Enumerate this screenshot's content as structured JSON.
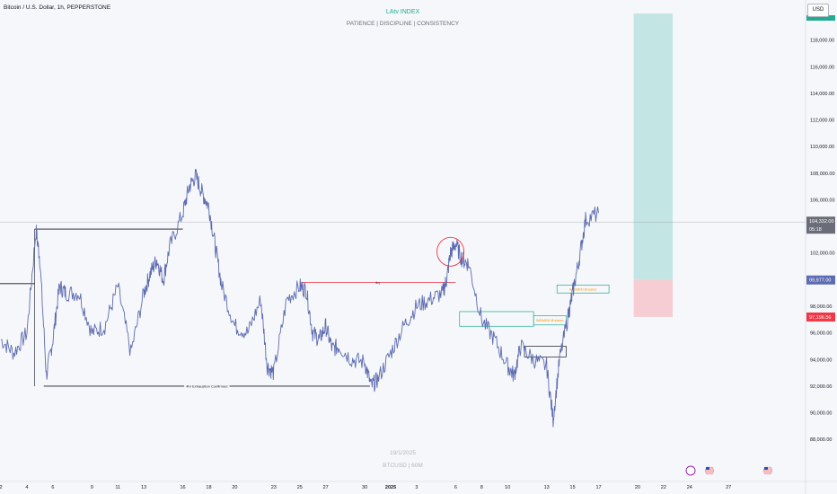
{
  "header": {
    "symbol": "Bitcoin / U.S. Dollar, 1h, PEPPERSTONE",
    "title": "LAtv INDEX",
    "subtitle": "PATIENCE | DISCIPLINE | CONSISTENCY",
    "currency": "USD"
  },
  "watermark": {
    "date": "19/1/2025",
    "symbol": "BTCUSD | 60M"
  },
  "colors": {
    "price": "#5d6bb0",
    "bull": "#22ab94",
    "bear": "#f23645",
    "axis": "#131722"
  },
  "chart_data": {
    "type": "line",
    "title": "",
    "xlabel": "",
    "ylabel": "",
    "ylim": [
      86800,
      120000
    ],
    "y_ticks": [
      "88,000.00",
      "90,000.00",
      "92,000.00",
      "94,000.00",
      "96,000.00",
      "98,000.00",
      "100,000.00",
      "102,000.00",
      "104,000.00",
      "106,000.00",
      "108,000.00",
      "110,000.00",
      "112,000.00",
      "114,000.00",
      "116,000.00",
      "118,000.00"
    ],
    "x_ticks": [
      "2",
      "4",
      "6",
      "9",
      "11",
      "13",
      "16",
      "18",
      "20",
      "23",
      "25",
      "27",
      "30",
      "2025",
      "3",
      "6",
      "8",
      "10",
      "13",
      "15",
      "17",
      "20",
      "22",
      "24",
      "27"
    ],
    "series": [
      {
        "x": [
          2,
          3,
          4,
          4.7,
          5,
          5.5,
          6,
          6.5,
          7,
          8,
          9,
          10,
          11,
          12,
          13,
          13.5,
          14,
          14.5,
          15,
          16,
          16.5,
          17,
          17.5,
          18,
          18.5,
          19,
          20,
          21,
          22,
          22.5,
          23,
          24,
          25,
          25.5,
          26,
          26.5,
          27,
          27.5,
          28,
          29,
          30,
          30.5,
          31,
          32,
          33,
          34,
          35,
          36,
          36.3,
          36.6,
          37,
          37.5,
          38,
          39,
          40,
          41,
          41.5,
          42,
          43,
          44,
          44.5,
          45,
          45.7,
          46,
          46.5,
          47,
          48
        ],
        "y": [
          95500,
          94500,
          96000,
          103700,
          101500,
          92800,
          95500,
          99500,
          99000,
          99000,
          96000,
          96500,
          99500,
          94500,
          99000,
          100500,
          101500,
          100000,
          102500,
          105000,
          107000,
          107800,
          106500,
          105500,
          102500,
          99500,
          96500,
          96000,
          98500,
          93500,
          93000,
          98500,
          99500,
          99200,
          96000,
          95500,
          96500,
          94800,
          95000,
          94000,
          93800,
          92000,
          92500,
          94500,
          96500,
          98000,
          98500,
          99000,
          100000,
          102000,
          102700,
          101500,
          101200,
          97000,
          95500,
          93500,
          92800,
          95000,
          94000,
          93500,
          89500,
          94000,
          97500,
          99000,
          101500,
          104500,
          105000
        ]
      }
    ],
    "current_price": "104,332.00",
    "current_time": "05:18",
    "tags": [
      {
        "label": "99,977.00",
        "price": 99977,
        "color": "#5d6bb0"
      },
      {
        "label": "97,196.56",
        "price": 97196.56,
        "color": "#f23645"
      }
    ],
    "trade": {
      "entry": 99977,
      "stop": 97196.56,
      "target": 120000
    },
    "levels": [
      {
        "price": 103800,
        "x1": 4.6,
        "x2": 16,
        "color": "#131722",
        "label": ""
      },
      {
        "price": 99700,
        "x1": 1.6,
        "x2": 4.6,
        "color": "#131722",
        "label": ""
      },
      {
        "price": 99800,
        "x1": 25,
        "x2": 37,
        "color": "#f23645",
        "label": "liq"
      },
      {
        "price": 92000,
        "x1": 5.3,
        "x2": 30.4,
        "color": "#131722",
        "label": "4hr Exhaustion Confirmed"
      }
    ],
    "zones": [
      {
        "top": 97600,
        "bottom": 96500,
        "x1": 37.3,
        "x2": 43,
        "color": "#22ab94",
        "label": ""
      },
      {
        "top": 97300,
        "bottom": 96600,
        "x1": 43,
        "x2": 45.5,
        "color": "#22ab94",
        "label": "IMBMBN Breaker"
      },
      {
        "top": 99600,
        "bottom": 99000,
        "x1": 44.8,
        "x2": 48.8,
        "color": "#22ab94",
        "label": "IMBMBN Breaker"
      },
      {
        "top": 95000,
        "bottom": 94200,
        "x1": 42.3,
        "x2": 45.5,
        "color": "#131722",
        "label": ""
      }
    ],
    "circle": {
      "x": 36.6,
      "price": 102100
    }
  }
}
